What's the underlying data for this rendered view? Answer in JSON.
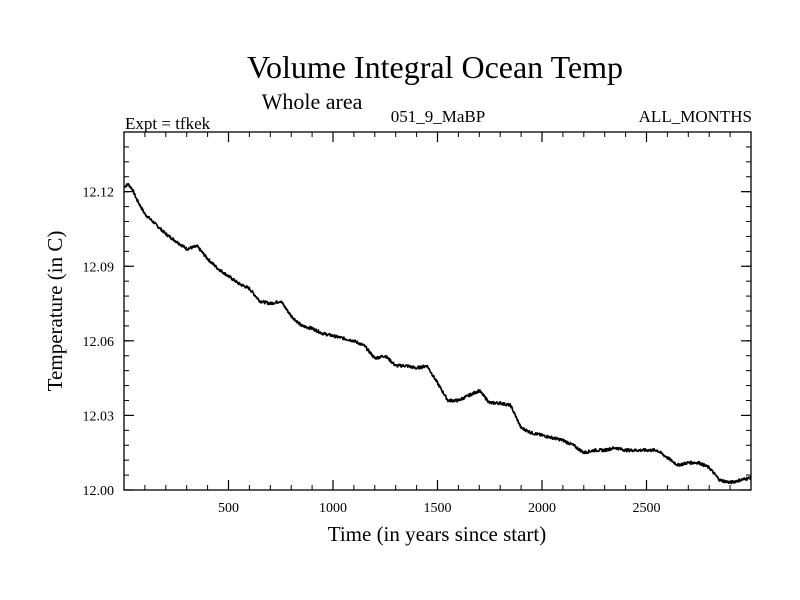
{
  "chart_data": {
    "type": "line",
    "title": "Volume Integral Ocean Temp",
    "subtitle": "Whole area",
    "annotations": {
      "left": "Expt = tfkek",
      "center": "051_9_MaBP",
      "right": "ALL_MONTHS"
    },
    "xlabel": "Time (in years since start)",
    "ylabel": "Temperature (in C)",
    "xlim": [
      0,
      3000
    ],
    "ylim": [
      12.0,
      12.144
    ],
    "xticks": [
      500,
      1000,
      1500,
      2000,
      2500
    ],
    "xtick_labels": [
      "500",
      "1000",
      "1500",
      "2000",
      "2500"
    ],
    "yticks": [
      12.0,
      12.03,
      12.06,
      12.09,
      12.12
    ],
    "ytick_labels": [
      "12.00",
      "12.03",
      "12.06",
      "12.09",
      "12.12"
    ],
    "grid": false,
    "series": [
      {
        "color": "#000000",
        "x": [
          0,
          20,
          40,
          60,
          80,
          100,
          150,
          200,
          250,
          300,
          350,
          400,
          450,
          500,
          550,
          600,
          650,
          700,
          750,
          800,
          850,
          900,
          950,
          1000,
          1050,
          1100,
          1150,
          1200,
          1250,
          1300,
          1350,
          1400,
          1450,
          1500,
          1550,
          1600,
          1650,
          1700,
          1750,
          1800,
          1850,
          1900,
          1950,
          2000,
          2050,
          2100,
          2150,
          2200,
          2250,
          2300,
          2350,
          2400,
          2450,
          2500,
          2550,
          2600,
          2650,
          2700,
          2750,
          2800,
          2850,
          2900,
          2950,
          3000
        ],
        "y": [
          12.122,
          12.123,
          12.121,
          12.117,
          12.114,
          12.111,
          12.107,
          12.103,
          12.1,
          12.097,
          12.098,
          12.093,
          12.089,
          12.086,
          12.083,
          12.081,
          12.076,
          12.075,
          12.076,
          12.07,
          12.066,
          12.065,
          12.063,
          12.062,
          12.061,
          12.06,
          12.058,
          12.053,
          12.054,
          12.05,
          12.05,
          12.049,
          12.05,
          12.043,
          12.036,
          12.036,
          12.038,
          12.04,
          12.035,
          12.035,
          12.034,
          12.025,
          12.023,
          12.022,
          12.021,
          12.02,
          12.018,
          12.015,
          12.016,
          12.016,
          12.017,
          12.016,
          12.016,
          12.016,
          12.016,
          12.013,
          12.01,
          12.011,
          12.011,
          12.009,
          12.004,
          12.003,
          12.004,
          12.005
        ]
      }
    ]
  }
}
